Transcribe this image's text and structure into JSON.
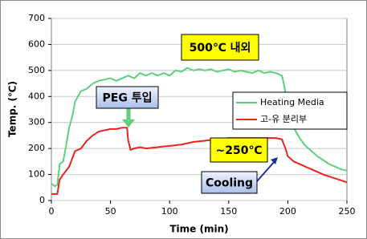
{
  "chart_data": {
    "type": "line",
    "xlabel": "Time (min)",
    "ylabel": "Temp. (℃)",
    "xlim": [
      0,
      250
    ],
    "xticks": [
      0,
      50,
      100,
      150,
      200,
      250
    ],
    "ylim": [
      0,
      700
    ],
    "yticks": [
      0,
      100,
      200,
      300,
      400,
      500,
      600,
      700
    ],
    "grid": true,
    "legend": "right",
    "series": [
      {
        "name": "Heating Media",
        "color": "#5fd07a",
        "x": [
          0,
          3,
          5,
          7,
          10,
          12,
          15,
          18,
          20,
          25,
          30,
          35,
          40,
          45,
          50,
          55,
          60,
          65,
          70,
          75,
          80,
          85,
          90,
          95,
          100,
          105,
          110,
          115,
          120,
          125,
          130,
          135,
          140,
          145,
          150,
          155,
          160,
          165,
          170,
          175,
          180,
          185,
          190,
          195,
          197,
          200,
          205,
          210,
          215,
          220,
          225,
          230,
          235,
          240,
          245,
          250
        ],
        "values": [
          65,
          55,
          60,
          140,
          150,
          200,
          280,
          330,
          380,
          420,
          430,
          450,
          460,
          465,
          470,
          460,
          470,
          480,
          470,
          490,
          480,
          490,
          480,
          490,
          480,
          500,
          495,
          510,
          500,
          505,
          500,
          505,
          495,
          500,
          505,
          495,
          500,
          495,
          490,
          500,
          490,
          495,
          490,
          480,
          440,
          350,
          280,
          240,
          210,
          190,
          170,
          155,
          140,
          130,
          120,
          115
        ]
      },
      {
        "name": "고-유 분리부",
        "color": "#e8241c",
        "x": [
          0,
          5,
          7,
          10,
          15,
          20,
          25,
          30,
          35,
          40,
          45,
          50,
          55,
          60,
          64,
          65,
          67,
          70,
          75,
          80,
          90,
          100,
          110,
          120,
          130,
          140,
          150,
          160,
          170,
          180,
          190,
          195,
          198,
          200,
          205,
          210,
          220,
          230,
          240,
          250
        ],
        "values": [
          25,
          25,
          80,
          100,
          130,
          190,
          200,
          230,
          250,
          265,
          270,
          275,
          275,
          280,
          280,
          230,
          195,
          200,
          205,
          200,
          205,
          210,
          215,
          225,
          230,
          235,
          240,
          240,
          240,
          240,
          240,
          235,
          200,
          170,
          150,
          140,
          120,
          100,
          85,
          70
        ]
      }
    ],
    "annotations": [
      {
        "text": "500℃ 내외"
      },
      {
        "text": "PEG 투입"
      },
      {
        "text": "~250℃"
      },
      {
        "text": "Cooling"
      }
    ]
  }
}
